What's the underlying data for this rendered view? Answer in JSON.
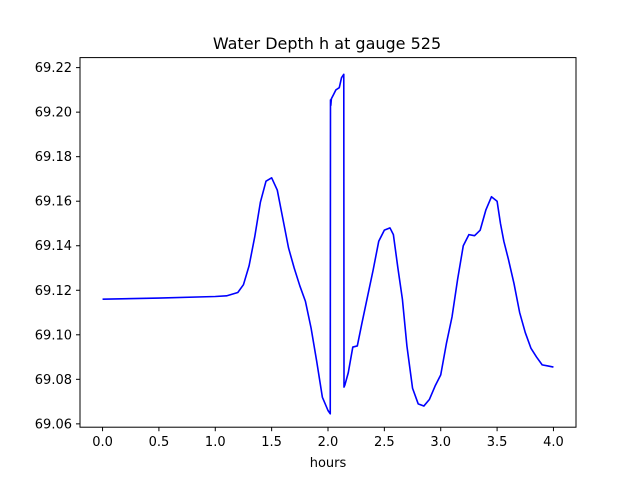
{
  "chart_data": {
    "type": "line",
    "title": "Water Depth h at gauge 525",
    "xlabel": "hours",
    "ylabel": "",
    "xlim": [
      -0.2,
      4.2
    ],
    "ylim": [
      69.0585,
      69.2245
    ],
    "xticks": [
      0.0,
      0.5,
      1.0,
      1.5,
      2.0,
      2.5,
      3.0,
      3.5,
      4.0
    ],
    "xtick_labels": [
      "0.0",
      "0.5",
      "1.0",
      "1.5",
      "2.0",
      "2.5",
      "3.0",
      "3.5",
      "4.0"
    ],
    "yticks": [
      69.06,
      69.08,
      69.1,
      69.12,
      69.14,
      69.16,
      69.18,
      69.2,
      69.22
    ],
    "ytick_labels": [
      "69.06",
      "69.08",
      "69.10",
      "69.12",
      "69.14",
      "69.16",
      "69.18",
      "69.20",
      "69.22"
    ],
    "grid": false,
    "series": [
      {
        "color": "#0000ff",
        "x": [
          0.0,
          0.5,
          1.0,
          1.1,
          1.2,
          1.25,
          1.3,
          1.35,
          1.4,
          1.45,
          1.5,
          1.55,
          1.6,
          1.65,
          1.7,
          1.75,
          1.8,
          1.85,
          1.9,
          1.95,
          2.0,
          2.02,
          2.022,
          2.025,
          2.03,
          2.05,
          2.07,
          2.1,
          2.12,
          2.14,
          2.142,
          2.15,
          2.18,
          2.22,
          2.26,
          2.3,
          2.35,
          2.4,
          2.45,
          2.5,
          2.55,
          2.58,
          2.62,
          2.66,
          2.7,
          2.75,
          2.8,
          2.85,
          2.9,
          2.95,
          3.0,
          3.05,
          3.1,
          3.15,
          3.2,
          3.25,
          3.3,
          3.35,
          3.4,
          3.45,
          3.5,
          3.53,
          3.56,
          3.6,
          3.65,
          3.7,
          3.75,
          3.8,
          3.85,
          3.9,
          3.95,
          4.0
        ],
        "y": [
          69.116,
          69.1165,
          69.1172,
          69.1175,
          69.119,
          69.1225,
          69.131,
          69.144,
          69.1595,
          69.169,
          69.1705,
          69.165,
          69.152,
          69.139,
          69.13,
          69.122,
          69.115,
          69.103,
          69.088,
          69.072,
          69.066,
          69.0645,
          69.2055,
          69.203,
          69.206,
          69.208,
          69.21,
          69.211,
          69.2155,
          69.217,
          69.0765,
          69.0775,
          69.083,
          69.0945,
          69.095,
          69.105,
          69.117,
          69.129,
          69.142,
          69.147,
          69.148,
          69.145,
          69.13,
          69.116,
          69.095,
          69.076,
          69.069,
          69.068,
          69.071,
          69.077,
          69.082,
          69.096,
          69.108,
          69.125,
          69.14,
          69.145,
          69.1445,
          69.147,
          69.156,
          69.162,
          69.16,
          69.15,
          69.142,
          69.134,
          69.123,
          69.11,
          69.101,
          69.094,
          69.09,
          69.0865,
          69.086,
          69.0855
        ]
      }
    ]
  }
}
